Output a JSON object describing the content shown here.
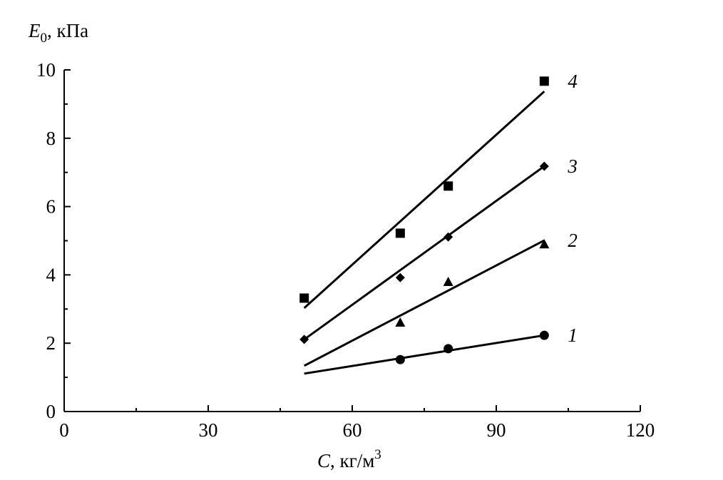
{
  "chart_data": {
    "type": "scatter",
    "title": "",
    "ylabel": {
      "symbol": "E",
      "subscript": "0",
      "unit": ", кПа"
    },
    "xlabel": {
      "symbol": "C",
      "unit": ", кг/м",
      "superscript": "3"
    },
    "xlim": [
      0,
      120
    ],
    "ylim": [
      0,
      10
    ],
    "xticks": [
      0,
      30,
      60,
      90,
      120
    ],
    "yticks": [
      0,
      2,
      4,
      6,
      8,
      10
    ],
    "grid": false,
    "series": [
      {
        "name": "1",
        "marker": "circle",
        "x": [
          70,
          80,
          100
        ],
        "y": [
          1.52,
          1.84,
          2.23
        ],
        "fit": {
          "x": [
            50,
            100
          ],
          "y": [
            1.11,
            2.23
          ]
        }
      },
      {
        "name": "2",
        "marker": "triangle",
        "x": [
          70,
          80,
          100
        ],
        "y": [
          2.61,
          3.8,
          4.9
        ],
        "fit": {
          "x": [
            50,
            100
          ],
          "y": [
            1.34,
            5.01
          ]
        }
      },
      {
        "name": "3",
        "marker": "diamond",
        "x": [
          50,
          70,
          80,
          100
        ],
        "y": [
          2.11,
          3.92,
          5.11,
          7.18
        ],
        "fit": {
          "x": [
            50,
            100
          ],
          "y": [
            2.11,
            7.18
          ]
        }
      },
      {
        "name": "4",
        "marker": "square",
        "x": [
          50,
          70,
          80,
          100
        ],
        "y": [
          3.32,
          5.22,
          6.6,
          9.67
        ],
        "fit": {
          "x": [
            50,
            100
          ],
          "y": [
            3.03,
            9.37
          ]
        }
      }
    ]
  }
}
